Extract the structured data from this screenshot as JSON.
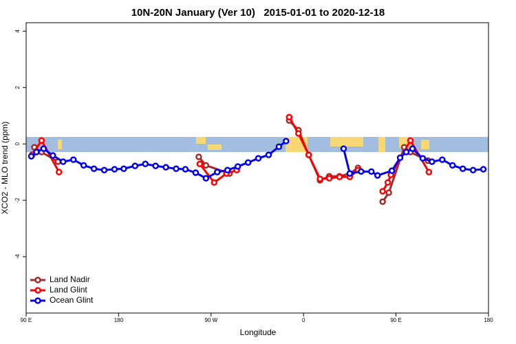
{
  "chart_data": {
    "type": "line",
    "title": "10N-20N January (Ver 10)   2015-01-01 to 2020-12-18",
    "xlabel": "Longitude",
    "ylabel": "XCO2 - MLO trend (ppm)",
    "xlim": [
      90,
      540
    ],
    "ylim": [
      -6,
      4.3
    ],
    "xticks": [
      {
        "value": 90,
        "label": "90 E"
      },
      {
        "value": 180,
        "label": "180"
      },
      {
        "value": 270,
        "label": "90 W"
      },
      {
        "value": 360,
        "label": "0"
      },
      {
        "value": 450,
        "label": "90 E"
      },
      {
        "value": 540,
        "label": "180"
      }
    ],
    "yticks": [
      4,
      2,
      0,
      -2,
      -4
    ],
    "legend": "bottom-left",
    "series": [
      {
        "name": "Land Nadir",
        "color": "#a52a2a",
        "x": [
          98,
          105,
          121,
          200,
          258,
          265,
          288,
          380,
          346,
          355,
          365,
          376,
          385,
          395,
          405,
          413,
          430,
          437,
          443,
          458,
          464,
          481
        ],
        "values": [
          -0.12,
          -0.29,
          -0.63,
          null,
          -0.46,
          -0.76,
          -1.05,
          null,
          0.83,
          0.49,
          -0.39,
          -1.29,
          -1.15,
          -1.15,
          -1.05,
          -0.85,
          null,
          -2.05,
          -1.73,
          -0.12,
          -0.29,
          -0.59
        ]
      },
      {
        "name": "Land Glint",
        "color": "#ff0000",
        "x": [
          96,
          105,
          122,
          200,
          259,
          273,
          285,
          295,
          380,
          346,
          355,
          365,
          376,
          385,
          395,
          405,
          413,
          430,
          437,
          442,
          445,
          464,
          482
        ],
        "values": [
          -0.38,
          0.12,
          -1.0,
          null,
          -0.71,
          -1.37,
          -1.05,
          -0.93,
          null,
          0.95,
          0.37,
          -0.39,
          -1.24,
          -1.22,
          -1.17,
          -1.17,
          -0.93,
          null,
          -1.68,
          -1.37,
          -1.1,
          0.12,
          -1.0
        ]
      },
      {
        "name": "Ocean Glint",
        "color": "#0000ee",
        "x": [
          95,
          100,
          107,
          116,
          126,
          136,
          146,
          156,
          166,
          176,
          185,
          196,
          206,
          216,
          226,
          236,
          245,
          255,
          265,
          276,
          286,
          296,
          306,
          316,
          326,
          336,
          343,
          370,
          399,
          405,
          416,
          426,
          432,
          446,
          454,
          460,
          466,
          476,
          485,
          495,
          505,
          515,
          525,
          535
        ],
        "values": [
          -0.44,
          -0.29,
          -0.17,
          -0.41,
          -0.63,
          -0.56,
          -0.76,
          -0.88,
          -0.93,
          -0.9,
          -0.88,
          -0.78,
          -0.71,
          -0.78,
          -0.83,
          -0.88,
          -0.9,
          -1.02,
          -1.22,
          -1.0,
          -0.93,
          -0.8,
          -0.66,
          -0.51,
          -0.39,
          -0.1,
          0.1,
          null,
          -0.17,
          -1.05,
          -0.98,
          -0.98,
          -1.12,
          -0.95,
          -0.49,
          -0.29,
          -0.17,
          -0.51,
          -0.63,
          -0.56,
          -0.76,
          -0.88,
          -0.93,
          -0.9
        ]
      }
    ]
  }
}
